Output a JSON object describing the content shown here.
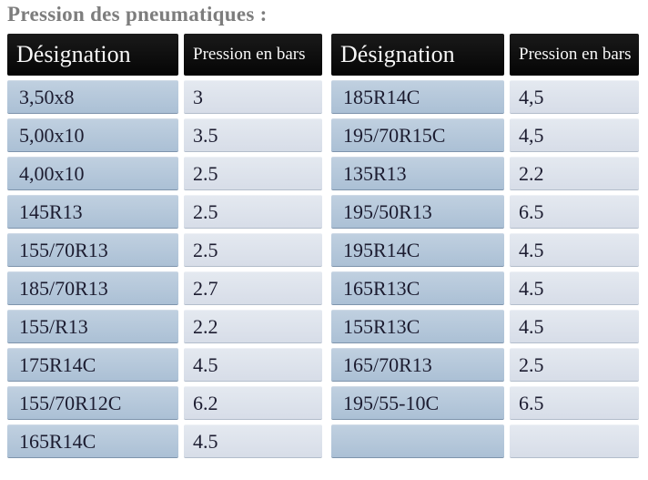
{
  "title": "Pression des pneumatiques :",
  "tables": [
    {
      "headers": [
        "Désignation",
        "Pression en bars"
      ],
      "rows": [
        [
          "3,50x8",
          "3"
        ],
        [
          "5,00x10",
          "3.5"
        ],
        [
          "4,00x10",
          "2.5"
        ],
        [
          "145R13",
          "2.5"
        ],
        [
          "155/70R13",
          "2.5"
        ],
        [
          "185/70R13",
          "2.7"
        ],
        [
          "155/R13",
          "2.2"
        ],
        [
          "175R14C",
          "4.5"
        ],
        [
          "155/70R12C",
          "6.2"
        ],
        [
          "165R14C",
          "4.5"
        ]
      ]
    },
    {
      "headers": [
        "Désignation",
        "Pression en bars"
      ],
      "rows": [
        [
          "185R14C",
          "4,5"
        ],
        [
          "195/70R15C",
          "4,5"
        ],
        [
          "135R13",
          "2.2"
        ],
        [
          "195/50R13",
          "6.5"
        ],
        [
          "195R14C",
          "4.5"
        ],
        [
          "165R13C",
          "4.5"
        ],
        [
          "155R13C",
          "4.5"
        ],
        [
          "165/70R13",
          "2.5"
        ],
        [
          "195/55-10C",
          "6.5"
        ],
        [
          "",
          ""
        ]
      ]
    }
  ],
  "colors": {
    "title_gray": "#7d7d7d",
    "header_bg": "#0a0a0a",
    "header_text": "#f7f7f7",
    "designation_cell_bg": "#b2c5d9",
    "pressure_cell_bg": "#dde3ec",
    "body_text": "#1c1c30",
    "page_bg": "#ffffff"
  }
}
